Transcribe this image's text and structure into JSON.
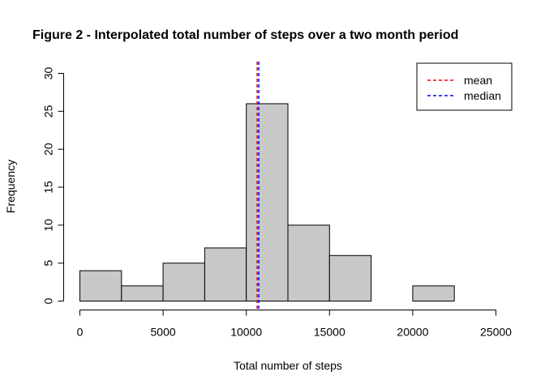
{
  "chart_data": {
    "type": "bar",
    "title": "Figure 2 - Interpolated total number of steps over a two month period",
    "xlabel": "Total number of steps",
    "ylabel": "Frequency",
    "bins": [
      {
        "x0": 0,
        "x1": 2500,
        "count": 4
      },
      {
        "x0": 2500,
        "x1": 5000,
        "count": 2
      },
      {
        "x0": 5000,
        "x1": 7500,
        "count": 5
      },
      {
        "x0": 7500,
        "x1": 10000,
        "count": 7
      },
      {
        "x0": 10000,
        "x1": 12500,
        "count": 26
      },
      {
        "x0": 12500,
        "x1": 15000,
        "count": 10
      },
      {
        "x0": 15000,
        "x1": 17500,
        "count": 6
      },
      {
        "x0": 17500,
        "x1": 20000,
        "count": 0
      },
      {
        "x0": 20000,
        "x1": 22500,
        "count": 2
      },
      {
        "x0": 22500,
        "x1": 25000,
        "count": 0
      }
    ],
    "xlim": [
      0,
      25000
    ],
    "ylim": [
      0,
      30
    ],
    "xticks": [
      0,
      5000,
      10000,
      15000,
      20000,
      25000
    ],
    "yticks": [
      0,
      5,
      10,
      15,
      20,
      25,
      30
    ],
    "grid": false,
    "bar_color": "#c8c8c8",
    "reference_lines": [
      {
        "name": "mean",
        "value": 10650,
        "color": "#ff0000",
        "style": "dashed"
      },
      {
        "name": "median",
        "value": 10750,
        "color": "#0000ff",
        "style": "dashed"
      }
    ],
    "legend": {
      "position": "top-right",
      "entries": [
        {
          "label": "mean",
          "color": "#ff0000"
        },
        {
          "label": "median",
          "color": "#0000ff"
        }
      ]
    }
  }
}
